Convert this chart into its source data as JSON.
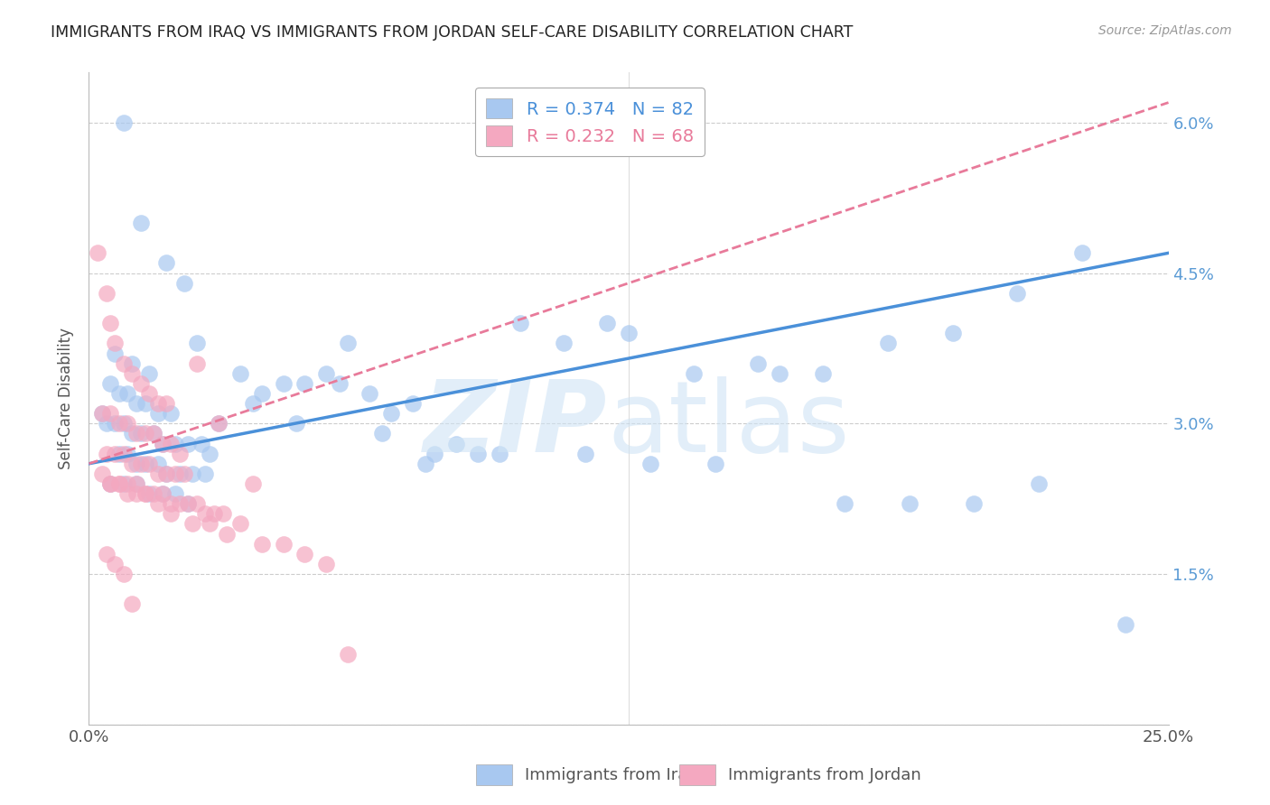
{
  "title": "IMMIGRANTS FROM IRAQ VS IMMIGRANTS FROM JORDAN SELF-CARE DISABILITY CORRELATION CHART",
  "source": "Source: ZipAtlas.com",
  "ylabel": "Self-Care Disability",
  "xlim": [
    0.0,
    0.25
  ],
  "ylim": [
    0.0,
    0.065
  ],
  "xticks": [
    0.0,
    0.05,
    0.1,
    0.15,
    0.2,
    0.25
  ],
  "xticklabels": [
    "0.0%",
    "",
    "",
    "",
    "",
    "25.0%"
  ],
  "yticks": [
    0.0,
    0.015,
    0.03,
    0.045,
    0.06
  ],
  "iraq_color": "#a8c8f0",
  "jordan_color": "#f4a8c0",
  "iraq_line_color": "#4a90d9",
  "jordan_line_color": "#e87a9a",
  "iraq_R": 0.374,
  "iraq_N": 82,
  "jordan_R": 0.232,
  "jordan_N": 68,
  "iraq_line_x0": 0.0,
  "iraq_line_y0": 0.026,
  "iraq_line_x1": 0.25,
  "iraq_line_y1": 0.047,
  "jordan_line_x0": 0.0,
  "jordan_line_y0": 0.026,
  "jordan_line_x1": 0.25,
  "jordan_line_y1": 0.062,
  "iraq_x": [
    0.008,
    0.012,
    0.018,
    0.022,
    0.025,
    0.006,
    0.01,
    0.014,
    0.005,
    0.007,
    0.009,
    0.011,
    0.013,
    0.016,
    0.019,
    0.003,
    0.004,
    0.006,
    0.008,
    0.01,
    0.012,
    0.015,
    0.017,
    0.02,
    0.023,
    0.026,
    0.028,
    0.007,
    0.009,
    0.011,
    0.013,
    0.016,
    0.018,
    0.021,
    0.024,
    0.027,
    0.005,
    0.008,
    0.011,
    0.014,
    0.017,
    0.02,
    0.023,
    0.03,
    0.038,
    0.045,
    0.055,
    0.065,
    0.075,
    0.085,
    0.095,
    0.11,
    0.125,
    0.14,
    0.155,
    0.17,
    0.185,
    0.2,
    0.215,
    0.23,
    0.05,
    0.06,
    0.07,
    0.08,
    0.09,
    0.1,
    0.115,
    0.13,
    0.145,
    0.16,
    0.175,
    0.19,
    0.205,
    0.22,
    0.035,
    0.04,
    0.048,
    0.058,
    0.068,
    0.078,
    0.12,
    0.24
  ],
  "iraq_y": [
    0.06,
    0.05,
    0.046,
    0.044,
    0.038,
    0.037,
    0.036,
    0.035,
    0.034,
    0.033,
    0.033,
    0.032,
    0.032,
    0.031,
    0.031,
    0.031,
    0.03,
    0.03,
    0.03,
    0.029,
    0.029,
    0.029,
    0.028,
    0.028,
    0.028,
    0.028,
    0.027,
    0.027,
    0.027,
    0.026,
    0.026,
    0.026,
    0.025,
    0.025,
    0.025,
    0.025,
    0.024,
    0.024,
    0.024,
    0.023,
    0.023,
    0.023,
    0.022,
    0.03,
    0.032,
    0.034,
    0.035,
    0.033,
    0.032,
    0.028,
    0.027,
    0.038,
    0.039,
    0.035,
    0.036,
    0.035,
    0.038,
    0.039,
    0.043,
    0.047,
    0.034,
    0.038,
    0.031,
    0.027,
    0.027,
    0.04,
    0.027,
    0.026,
    0.026,
    0.035,
    0.022,
    0.022,
    0.022,
    0.024,
    0.035,
    0.033,
    0.03,
    0.034,
    0.029,
    0.026,
    0.04,
    0.01
  ],
  "jordan_x": [
    0.002,
    0.004,
    0.005,
    0.006,
    0.008,
    0.01,
    0.012,
    0.014,
    0.016,
    0.018,
    0.003,
    0.005,
    0.007,
    0.009,
    0.011,
    0.013,
    0.015,
    0.017,
    0.019,
    0.021,
    0.004,
    0.006,
    0.008,
    0.01,
    0.012,
    0.014,
    0.016,
    0.018,
    0.02,
    0.022,
    0.003,
    0.005,
    0.007,
    0.009,
    0.011,
    0.013,
    0.015,
    0.017,
    0.019,
    0.021,
    0.023,
    0.025,
    0.027,
    0.029,
    0.031,
    0.035,
    0.04,
    0.045,
    0.05,
    0.055,
    0.005,
    0.007,
    0.009,
    0.011,
    0.013,
    0.016,
    0.019,
    0.024,
    0.028,
    0.032,
    0.004,
    0.006,
    0.008,
    0.01,
    0.025,
    0.03,
    0.038,
    0.06
  ],
  "jordan_y": [
    0.047,
    0.043,
    0.04,
    0.038,
    0.036,
    0.035,
    0.034,
    0.033,
    0.032,
    0.032,
    0.031,
    0.031,
    0.03,
    0.03,
    0.029,
    0.029,
    0.029,
    0.028,
    0.028,
    0.027,
    0.027,
    0.027,
    0.027,
    0.026,
    0.026,
    0.026,
    0.025,
    0.025,
    0.025,
    0.025,
    0.025,
    0.024,
    0.024,
    0.024,
    0.024,
    0.023,
    0.023,
    0.023,
    0.022,
    0.022,
    0.022,
    0.022,
    0.021,
    0.021,
    0.021,
    0.02,
    0.018,
    0.018,
    0.017,
    0.016,
    0.024,
    0.024,
    0.023,
    0.023,
    0.023,
    0.022,
    0.021,
    0.02,
    0.02,
    0.019,
    0.017,
    0.016,
    0.015,
    0.012,
    0.036,
    0.03,
    0.024,
    0.007
  ]
}
